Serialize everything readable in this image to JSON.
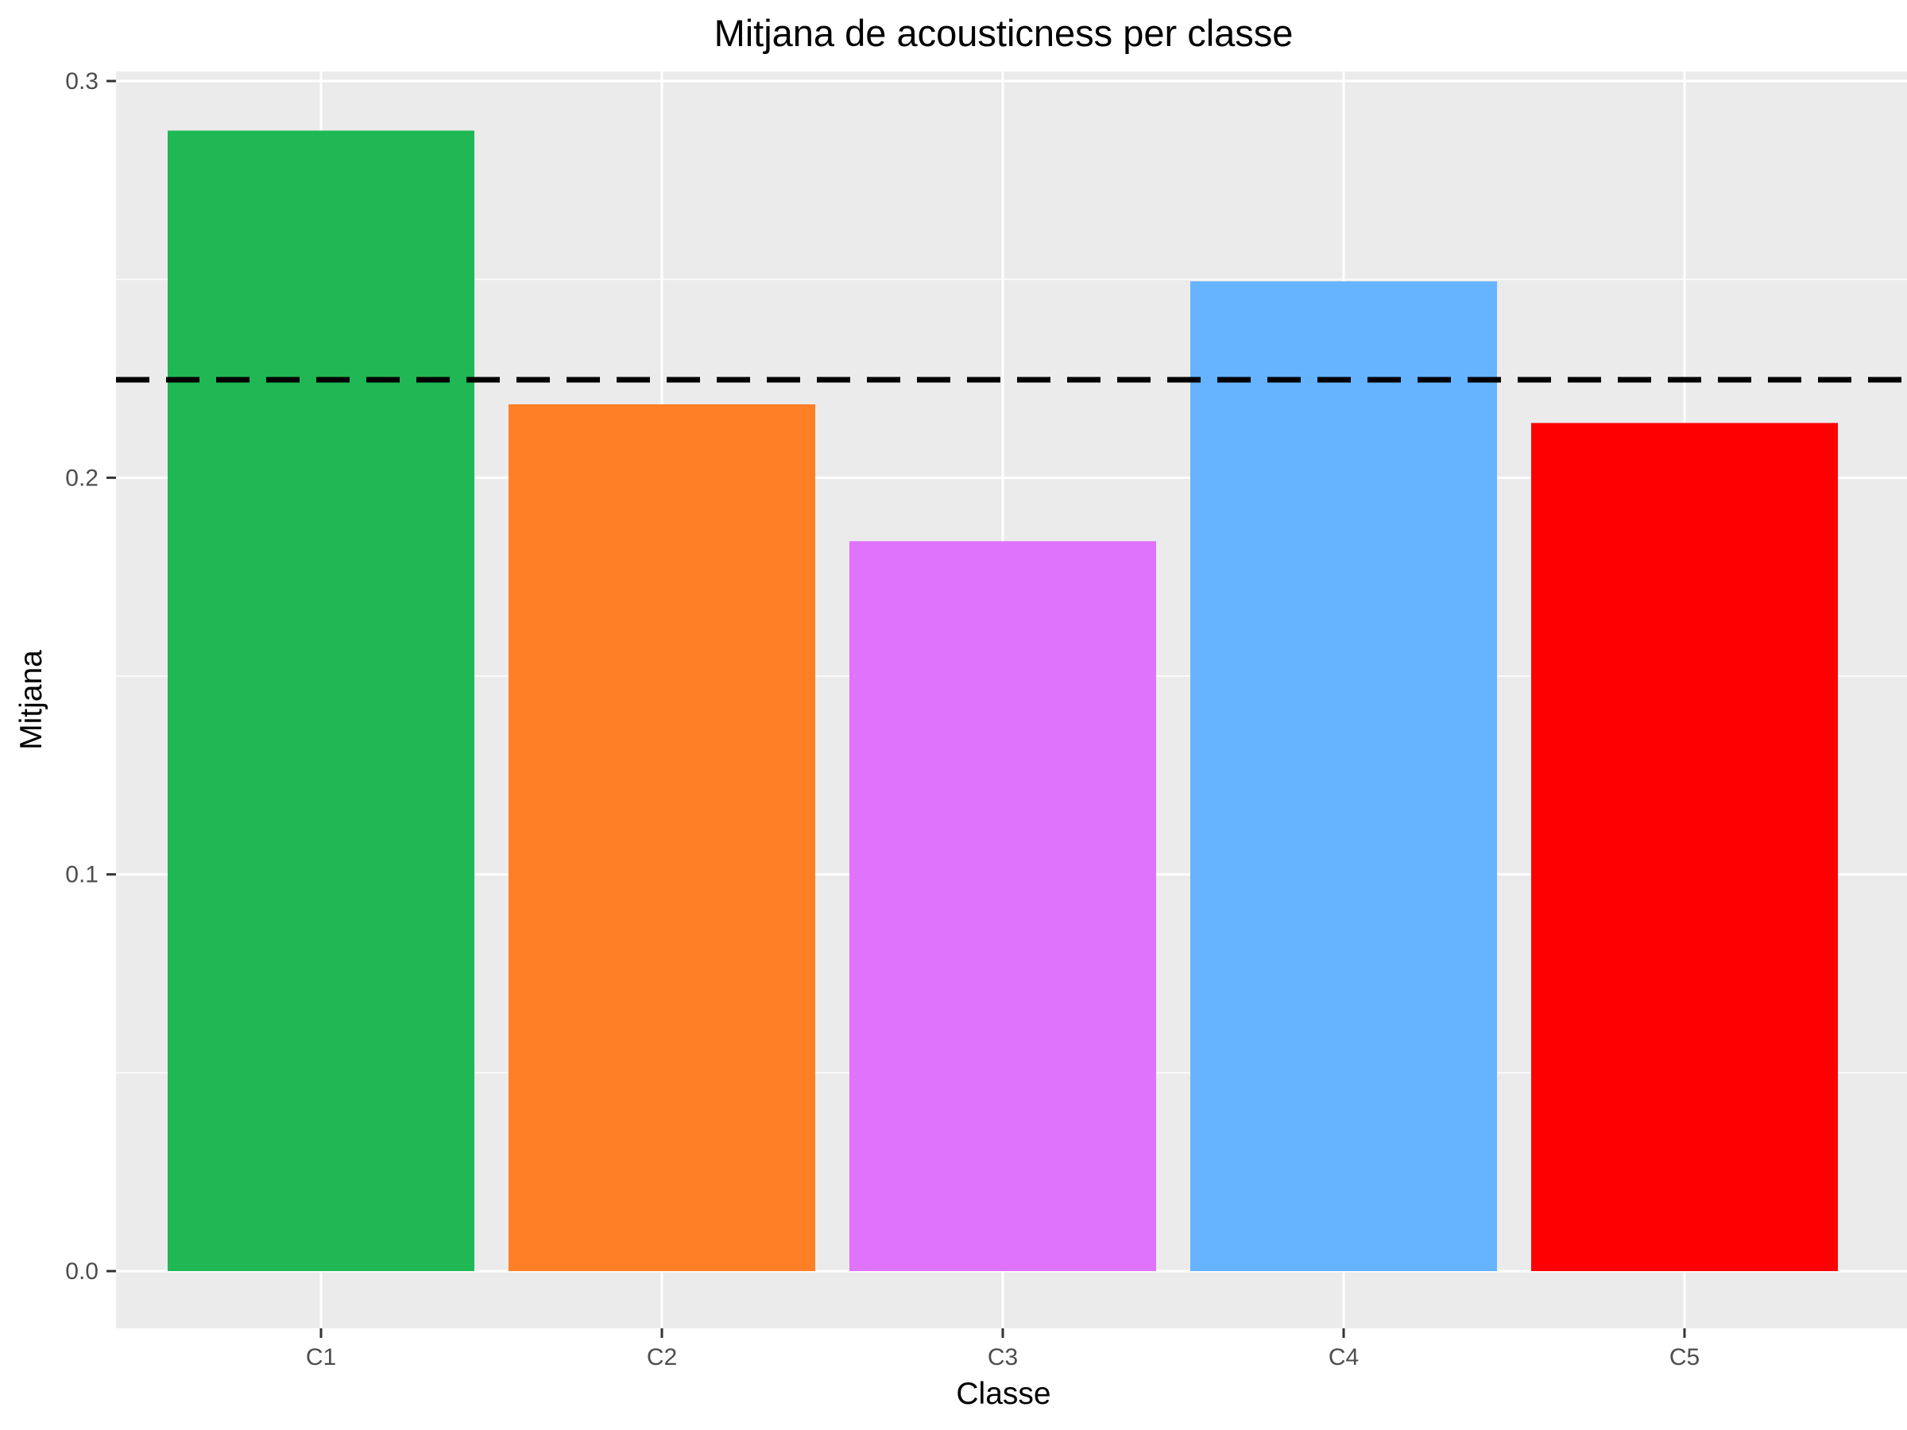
{
  "chart_data": {
    "type": "bar",
    "title": "Mitjana de acousticness per classe",
    "xlabel": "Classe",
    "ylabel": "Mitjana",
    "categories": [
      "C1",
      "C2",
      "C3",
      "C4",
      "C5"
    ],
    "values": [
      0.2875,
      0.2185,
      0.184,
      0.2495,
      0.2138
    ],
    "colors": [
      "#1fb854",
      "#ff7f26",
      "#df73fb",
      "#66b3ff",
      "#ff0000"
    ],
    "reference_line": {
      "value": 0.2247,
      "style": "dashed",
      "color": "#000000"
    },
    "ylim": [
      -0.014,
      0.3
    ],
    "yticks": [
      0.0,
      0.1,
      0.2,
      0.3
    ],
    "ytick_labels": [
      "0.0",
      "0.1",
      "0.2",
      "0.3"
    ],
    "grid": true,
    "legend": "none",
    "panel_background": "#ebebeb",
    "grid_color": "#ffffff"
  }
}
